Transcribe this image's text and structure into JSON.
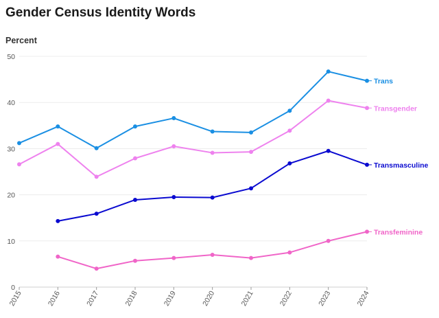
{
  "chart_data": {
    "type": "line",
    "title": "Gender Census Identity Words",
    "ylabel": "Percent",
    "xlabel": "",
    "x": [
      "2015",
      "2016",
      "2017",
      "2018",
      "2019",
      "2020",
      "2021",
      "2022",
      "2023",
      "2024"
    ],
    "ylim": [
      0,
      50
    ],
    "yticks": [
      0,
      10,
      20,
      30,
      40,
      50
    ],
    "grid": true,
    "legend": "direct labels at right end of lines",
    "series": [
      {
        "name": "Trans",
        "color": "#1a8fe3",
        "values": [
          31.2,
          34.8,
          30.1,
          34.8,
          36.6,
          33.7,
          33.5,
          38.2,
          46.7,
          44.7
        ]
      },
      {
        "name": "Transgender",
        "color": "#ee82ee",
        "values": [
          26.6,
          31.0,
          23.9,
          27.9,
          30.5,
          29.1,
          29.3,
          33.9,
          40.4,
          38.8
        ]
      },
      {
        "name": "Transmasculine",
        "color": "#0a0ad0",
        "values": [
          null,
          14.3,
          15.9,
          18.9,
          19.5,
          19.4,
          21.4,
          26.8,
          29.5,
          26.5
        ]
      },
      {
        "name": "Transfeminine",
        "color": "#f065c8",
        "values": [
          null,
          6.6,
          4.0,
          5.7,
          6.3,
          7.0,
          6.3,
          7.5,
          10.0,
          12.0
        ]
      }
    ]
  }
}
